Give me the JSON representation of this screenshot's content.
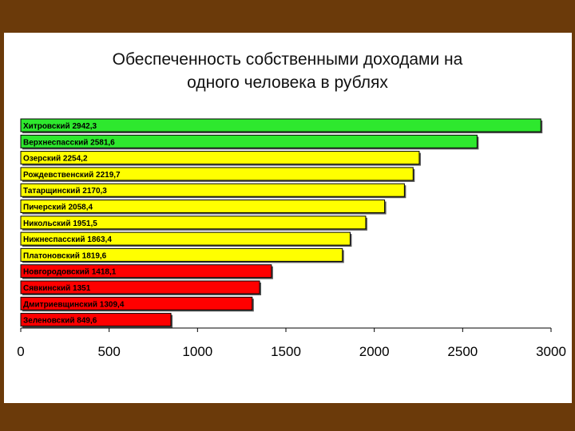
{
  "colors": {
    "frame": "#6b3a0a",
    "background": "#ffffff",
    "green": "#2ee82e",
    "yellow": "#ffff00",
    "red": "#ff0000",
    "shadow": "#555555"
  },
  "chart_data": {
    "type": "bar",
    "orientation": "horizontal",
    "title_lines": [
      "Обеспеченность собственными доходами на",
      "одного человека в рублях"
    ],
    "xlim": [
      0,
      3000
    ],
    "xticks": [
      "0",
      "500",
      "1000",
      "1500",
      "2000",
      "2500",
      "3000"
    ],
    "grid": false,
    "bars": [
      {
        "label": "Хитровский 2942,3",
        "value": 2942.3,
        "color": "green"
      },
      {
        "label": "Верхнеспасский 2581,6",
        "value": 2581.6,
        "color": "green"
      },
      {
        "label": "Озерский 2254,2",
        "value": 2254.2,
        "color": "yellow"
      },
      {
        "label": "Рождевственский 2219,7",
        "value": 2219.7,
        "color": "yellow"
      },
      {
        "label": "Татарщинский 2170,3",
        "value": 2170.3,
        "color": "yellow"
      },
      {
        "label": "Пичерский 2058,4",
        "value": 2058.4,
        "color": "yellow"
      },
      {
        "label": "Никольский 1951,5",
        "value": 1951.5,
        "color": "yellow"
      },
      {
        "label": "Нижнеспасский 1863,4",
        "value": 1863.4,
        "color": "yellow"
      },
      {
        "label": "Платоновский 1819,6",
        "value": 1819.6,
        "color": "yellow"
      },
      {
        "label": "Новгородовский 1418,1",
        "value": 1418.1,
        "color": "red"
      },
      {
        "label": "Сявкинский 1351",
        "value": 1351,
        "color": "red"
      },
      {
        "label": "Дмитриевщинский 1309,4",
        "value": 1309.4,
        "color": "red"
      },
      {
        "label": "Зеленовский 849,6",
        "value": 849.6,
        "color": "red"
      }
    ]
  }
}
